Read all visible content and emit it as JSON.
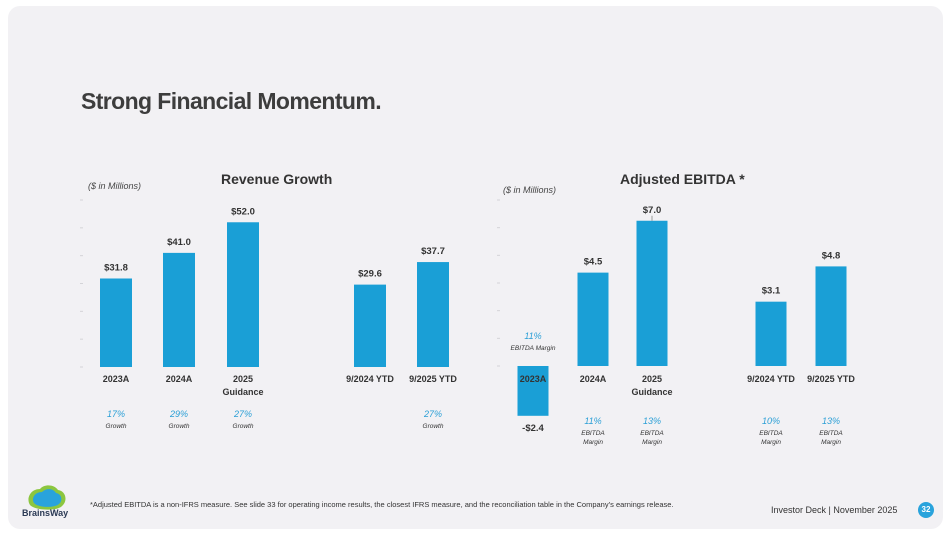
{
  "slide": {
    "title": "Strong Financial Momentum.",
    "footnote": "*Adjusted EBITDA is a non-IFRS measure. See slide 33  for operating income results, the closest IFRS measure, and the reconciliation table in the Company’s earnings release.",
    "deck_label": "Investor Deck | November 2025",
    "page_number": "32",
    "logo_text": "BrainsWay"
  },
  "colors": {
    "bar": "#1a9fd6",
    "pct": "#2a9fd6",
    "text": "#333333",
    "page_badge": "#29a3dc"
  },
  "chart_data": [
    {
      "type": "bar",
      "title": "Revenue Growth",
      "unit_note": "($ in Millions)",
      "categories": [
        "2023A",
        "2024A",
        "2025 Guidance",
        "9/2024 YTD",
        "9/2025 YTD"
      ],
      "category_lines": [
        [
          "2023A"
        ],
        [
          "2024A"
        ],
        [
          "2025",
          "Guidance"
        ],
        [
          "9/2024 YTD"
        ],
        [
          "9/2025 YTD"
        ]
      ],
      "values": [
        31.8,
        41.0,
        52.0,
        29.6,
        37.7
      ],
      "value_labels": [
        "$31.8",
        "$41.0",
        "$52.0",
        "$29.6",
        "$37.7"
      ],
      "sub_pct": [
        "17%",
        "29%",
        "27%",
        "",
        "27%"
      ],
      "sub_text": [
        [
          "Growth"
        ],
        [
          "Growth"
        ],
        [
          "Growth"
        ],
        [],
        [
          "Growth"
        ]
      ],
      "ylim": [
        0,
        60
      ]
    },
    {
      "type": "bar",
      "title": "Adjusted EBITDA *",
      "unit_note": "($ in Millions)",
      "categories": [
        "2023A",
        "2024A",
        "2025 Guidance",
        "9/2024 YTD",
        "9/2025 YTD"
      ],
      "category_lines": [
        [
          "2023A"
        ],
        [
          "2024A"
        ],
        [
          "2025",
          "Guidance"
        ],
        [
          "9/2024 YTD"
        ],
        [
          "9/2025 YTD"
        ]
      ],
      "values": [
        -2.4,
        4.5,
        7.0,
        3.1,
        4.8
      ],
      "value_labels": [
        "-$2.4",
        "$4.5",
        "$7.0",
        "$3.1",
        "$4.8"
      ],
      "annotation": {
        "pct": "11%",
        "text": "EBITDA Margin"
      },
      "sub_pct": [
        "",
        "11%",
        "13%",
        "10%",
        "13%"
      ],
      "sub_text": [
        [],
        [
          "EBITDA",
          "Margin"
        ],
        [
          "EBITDA",
          "Margin"
        ],
        [
          "EBITDA",
          "Margin"
        ],
        [
          "EBITDA",
          "Margin"
        ]
      ],
      "ylim": [
        -3,
        8
      ]
    }
  ]
}
